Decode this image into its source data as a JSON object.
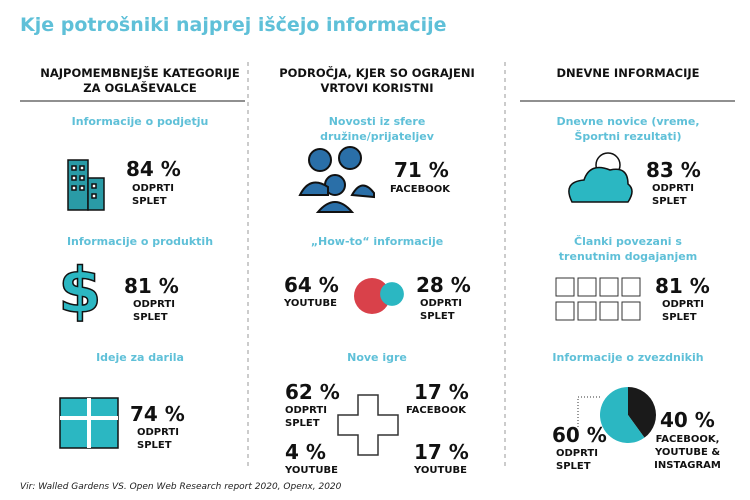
{
  "title": "Kje potrošniki najprej iščejo informacije",
  "source": "Vir: Walled Gardens VS. Open Web Research report 2020, Openx, 2020",
  "columns": [
    {
      "header": "NAJPOMEMBNEJŠE KATEGORIJE ZA OGLAŠEVALCE",
      "items": [
        {
          "label": "Informacije o podjetju",
          "stats": [
            {
              "value_label": "84 %",
              "source": "ODPRTI SPLET"
            }
          ]
        },
        {
          "label": "Informacije o produktih",
          "stats": [
            {
              "value_label": "81 %",
              "source": "ODPRTI SPLET"
            }
          ]
        },
        {
          "label": "Ideje za darila",
          "stats": [
            {
              "value_label": "74 %",
              "source": "ODPRTI SPLET"
            }
          ]
        }
      ]
    },
    {
      "header": "PODROČJA, KJER SO OGRAJENI VRTOVI KORISTNI",
      "items": [
        {
          "label": "Novosti iz sfere družine/prijateljev",
          "stats": [
            {
              "value_label": "71 %",
              "source": "FACEBOOK"
            }
          ]
        },
        {
          "label": "„How-to“ informacije",
          "stats": [
            {
              "value": 64,
              "value_label": "64 %",
              "source": "YOUTUBE",
              "color": "#d9414a"
            },
            {
              "value": 28,
              "value_label": "28 %",
              "source": "ODPRTI SPLET",
              "color": "#2bb7c2"
            }
          ]
        },
        {
          "label": "Nove igre",
          "stats": [
            {
              "value_label": "62 %",
              "source": "ODPRTI SPLET"
            },
            {
              "value_label": "17 %",
              "source": "FACEBOOK"
            },
            {
              "value_label": "4 %",
              "source": "YOUTUBE"
            },
            {
              "value_label": "17 %",
              "source": "YOUTUBE"
            }
          ]
        }
      ]
    },
    {
      "header": "DNEVNE INFORMACIJE",
      "items": [
        {
          "label": "Dnevne novice (vreme, Športni rezultati)",
          "stats": [
            {
              "value_label": "83 %",
              "source": "ODPRTI SPLET"
            }
          ]
        },
        {
          "label": "Članki povezani s trenutnim dogajanjem",
          "stats": [
            {
              "value_label": "81 %",
              "source": "ODPRTI SPLET"
            }
          ]
        },
        {
          "label": "Informacije o zvezdnikih",
          "stats": [
            {
              "value": 60,
              "value_label": "60 %",
              "source": "ODPRTI SPLET",
              "color": "#2bb7c2"
            },
            {
              "value": 40,
              "value_label": "40 %",
              "source": "FACEBOOK, YOUTUBE & INSTAGRAM",
              "color": "#1a1a1a"
            }
          ]
        }
      ]
    }
  ]
}
